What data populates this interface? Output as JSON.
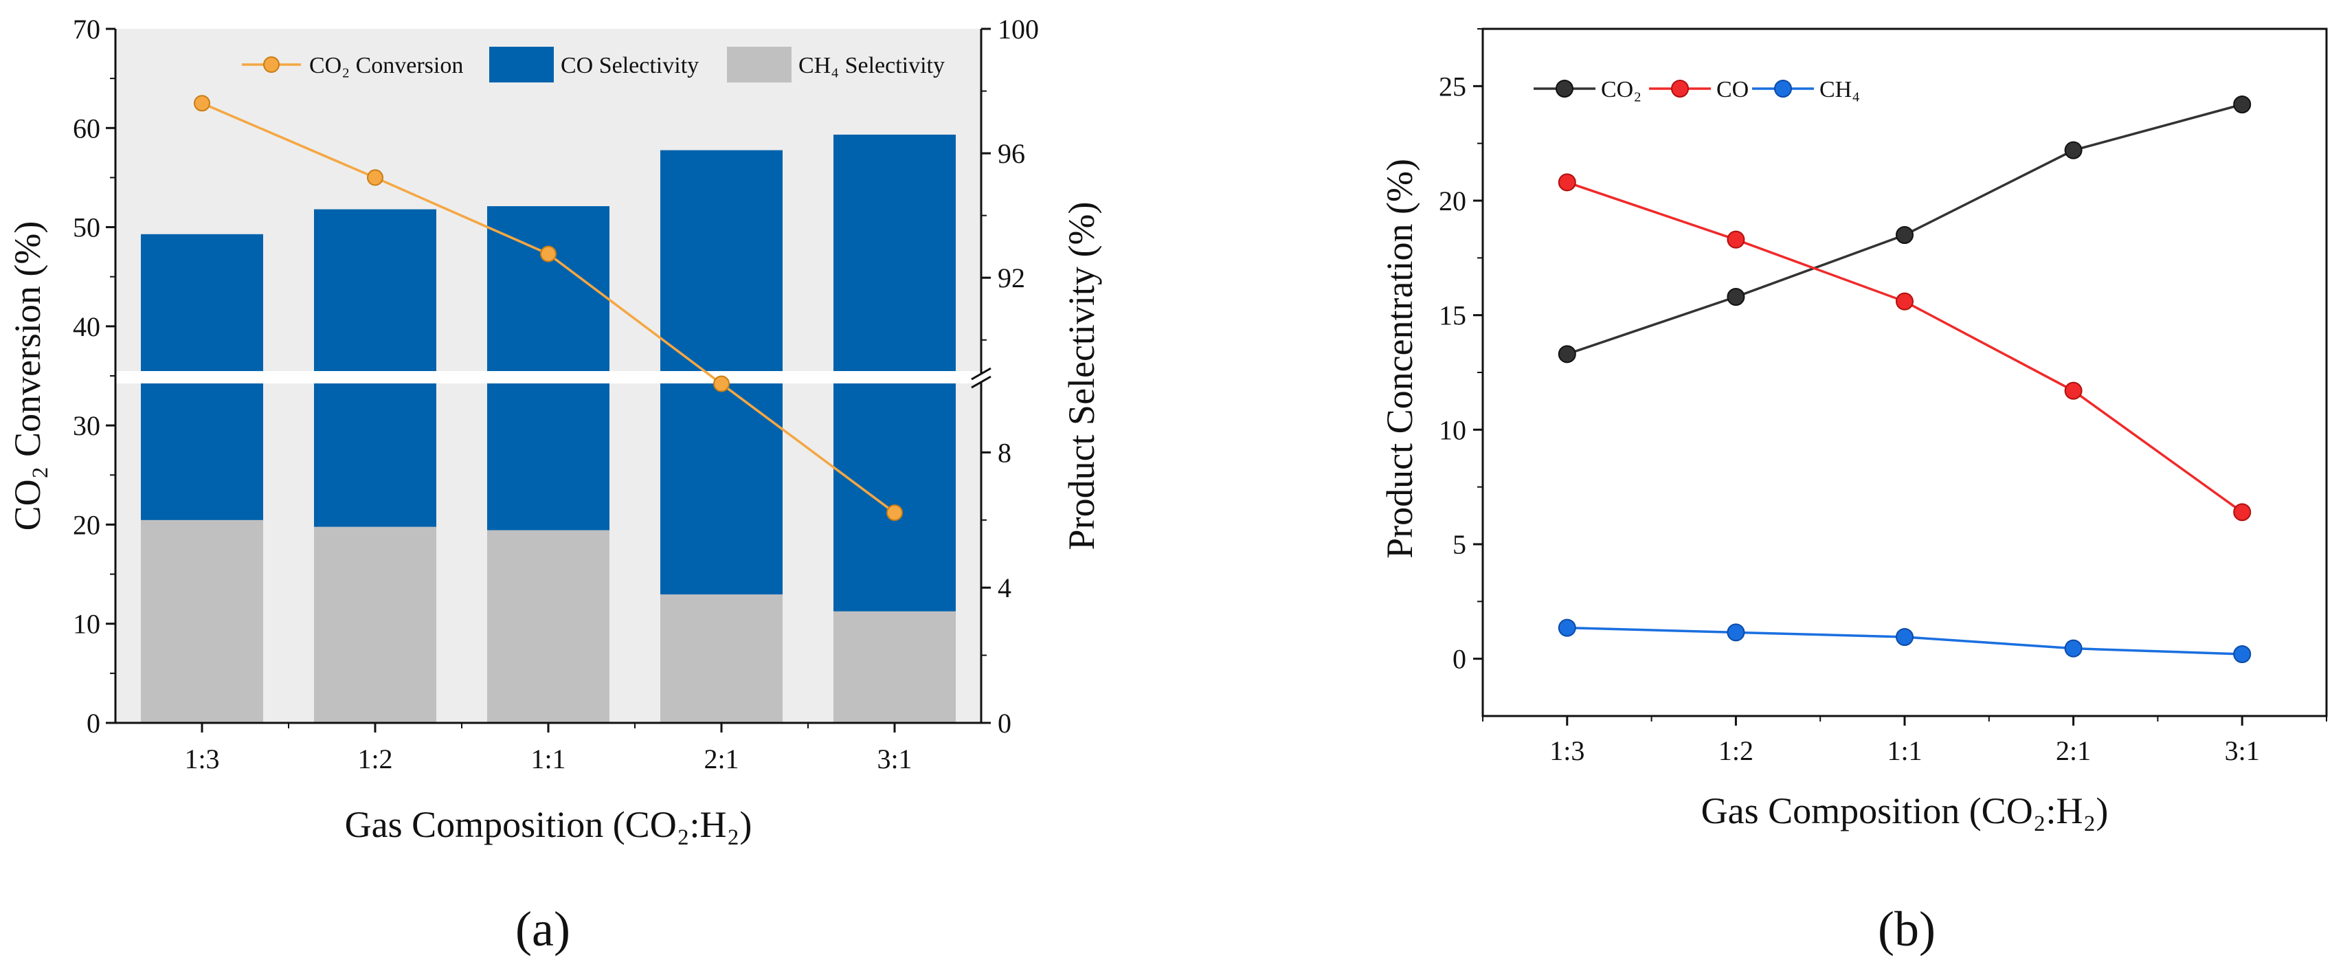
{
  "chart_data": [
    {
      "type": "bar+line",
      "panel_label": "(a)",
      "categories": [
        "1:3",
        "1:2",
        "1:1",
        "2:1",
        "3:1"
      ],
      "xlabel": "Gas Composition (CO₂:H₂)",
      "ylabel_left": "CO₂ Conversion (%)",
      "ylabel_right": "Product Selectivity (%)",
      "ylim_left": [
        0,
        70
      ],
      "yticks_left": [
        0,
        10,
        20,
        30,
        40,
        50,
        60,
        70
      ],
      "right_axis": {
        "broken": true,
        "lower_range": [
          0,
          10
        ],
        "lower_ticks": [
          0,
          4,
          8
        ],
        "upper_range": [
          89,
          100
        ],
        "upper_ticks": [
          92,
          96,
          100
        ]
      },
      "series": [
        {
          "name": "CO₂ Conversion",
          "kind": "line",
          "axis": "left",
          "color": "#f5a742",
          "values": [
            62.5,
            55.0,
            47.3,
            34.2,
            21.2
          ]
        },
        {
          "name": "CO Selectivity",
          "kind": "bar",
          "axis": "right",
          "color": "#0062ad",
          "values": [
            93.4,
            94.2,
            94.3,
            96.1,
            96.6
          ]
        },
        {
          "name": "CH₄ Selectivity",
          "kind": "bar",
          "axis": "right",
          "color": "#c0c0c0",
          "values": [
            6.0,
            5.8,
            5.7,
            3.8,
            3.3
          ]
        }
      ],
      "legend_position": "top"
    },
    {
      "type": "line",
      "panel_label": "(b)",
      "categories": [
        "1:3",
        "1:2",
        "1:1",
        "2:1",
        "3:1"
      ],
      "xlabel": "Gas Composition (CO₂:H₂)",
      "ylabel": "Product Concentration (%)",
      "ylim": [
        -2.5,
        27.5
      ],
      "yticks": [
        0,
        5,
        10,
        15,
        20,
        25
      ],
      "series": [
        {
          "name": "CO₂",
          "color": "#333333",
          "values": [
            13.3,
            15.8,
            18.5,
            22.2,
            24.2
          ]
        },
        {
          "name": "CO",
          "color": "#f02a2a",
          "values": [
            20.8,
            18.3,
            15.6,
            11.7,
            6.4
          ]
        },
        {
          "name": "CH₄",
          "color": "#1a6fe0",
          "values": [
            1.35,
            1.15,
            0.95,
            0.45,
            0.2
          ]
        }
      ],
      "legend_position": "top-left"
    }
  ]
}
